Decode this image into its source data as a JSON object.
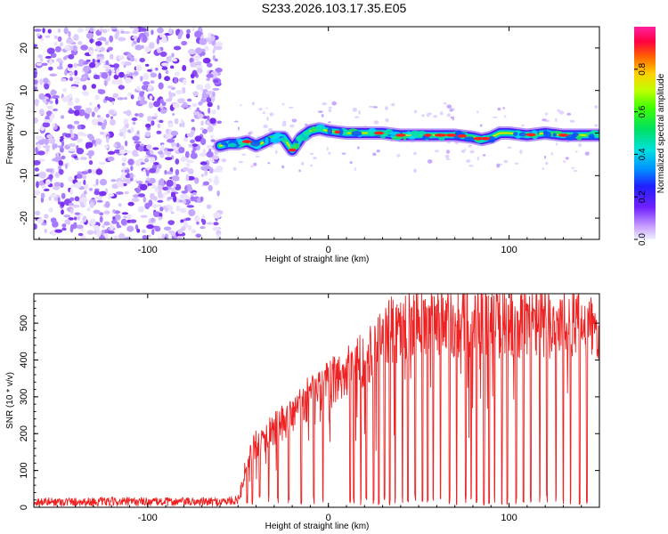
{
  "title": "S233.2026.103.17.35.E05",
  "chart_data": [
    {
      "type": "heatmap",
      "title": "S233.2026.103.17.35.E05",
      "xlabel": "Height of straight line (km)",
      "ylabel": "Frequency (Hz)",
      "xlim": [
        -163,
        150
      ],
      "ylim": [
        -25,
        25
      ],
      "xticks": [
        -100,
        0,
        100
      ],
      "yticks": [
        -20,
        -10,
        0,
        10,
        20
      ],
      "signal_start_km": -60,
      "noise_region_km": [
        -163,
        -60
      ],
      "trace_frequency": {
        "x": [
          -60,
          -55,
          -50,
          -45,
          -40,
          -35,
          -30,
          -25,
          -20,
          -15,
          -10,
          -5,
          0,
          10,
          20,
          30,
          40,
          50,
          60,
          70,
          80,
          85,
          90,
          95,
          100,
          110,
          120,
          130,
          140,
          150
        ],
        "y": [
          -3,
          -2.5,
          -2.5,
          -2,
          -3,
          -2,
          -1,
          -1,
          -4,
          -1,
          0.5,
          1,
          0.5,
          0,
          0,
          0,
          -0.5,
          -0.5,
          -0.5,
          -0.5,
          -1,
          -1.5,
          -1,
          0,
          0,
          -0.5,
          0,
          -0.5,
          -0.5,
          -0.5
        ]
      },
      "colorbar": {
        "label": "Normalized spectral amplitude",
        "ticks": [
          "0.0",
          "0.2",
          "0.4",
          "0.6",
          "0.8"
        ],
        "range": [
          0,
          1
        ]
      }
    },
    {
      "type": "line",
      "xlabel": "Height of straight line (km)",
      "ylabel": "SNR (10 * v/v)",
      "xlim": [
        -163,
        150
      ],
      "ylim": [
        0,
        580
      ],
      "xticks": [
        -100,
        0,
        100
      ],
      "yticks": [
        0,
        100,
        200,
        300,
        400,
        500
      ],
      "series": [
        {
          "name": "SNR",
          "color": "#ee2222",
          "envelope_x": [
            -163,
            -120,
            -60,
            -50,
            -48,
            -45,
            -40,
            -30,
            -20,
            -10,
            0,
            10,
            20,
            30,
            35,
            40,
            50,
            60,
            80,
            100,
            120,
            140,
            150
          ],
          "envelope_y": [
            15,
            15,
            15,
            20,
            60,
            130,
            170,
            210,
            250,
            300,
            330,
            370,
            410,
            450,
            480,
            490,
            500,
            500,
            505,
            500,
            500,
            505,
            480
          ],
          "dropouts_km": [
            -45,
            -42,
            -38,
            -33,
            -28,
            -22,
            -15,
            -8,
            -3,
            12,
            14,
            18,
            21,
            25,
            28,
            31,
            34,
            37,
            41,
            44,
            48,
            52,
            55,
            58,
            62,
            67,
            71,
            76,
            79,
            82,
            86,
            89,
            92,
            96,
            99,
            104,
            108,
            112,
            117,
            121,
            126,
            130,
            134,
            139,
            143
          ]
        }
      ]
    }
  ]
}
